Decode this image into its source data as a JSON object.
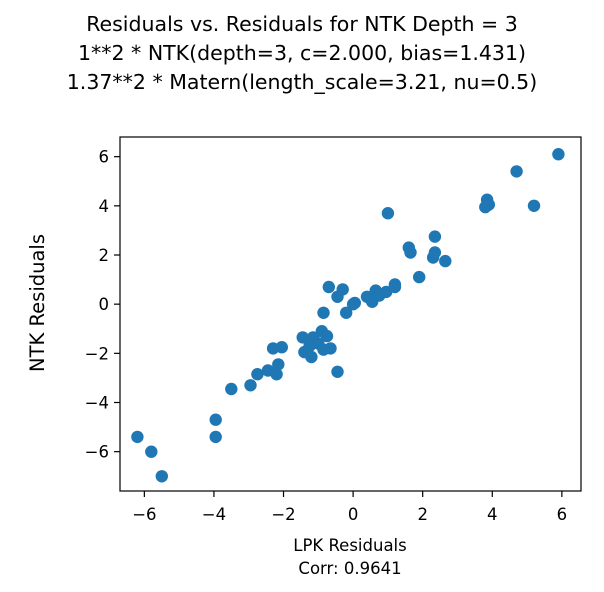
{
  "chart_data": {
    "type": "scatter",
    "title_lines": [
      "Residuals vs. Residuals for NTK Depth = 3",
      "1**2 * NTK(depth=3, c=2.000, bias=1.431)",
      "1.37**2 * Matern(length_scale=3.21, nu=0.5)"
    ],
    "xlabel": "LPK Residuals",
    "xlabel_sub": "Corr: 0.9641",
    "ylabel": "NTK Residuals",
    "xlim": [
      -6.7,
      6.55
    ],
    "ylim": [
      -7.6,
      6.8
    ],
    "xticks": [
      -6,
      -4,
      -2,
      0,
      2,
      4,
      6
    ],
    "yticks": [
      -6,
      -4,
      -2,
      0,
      2,
      4,
      6
    ],
    "xtick_labels": [
      "−6",
      "−4",
      "−2",
      "0",
      "2",
      "4",
      "6"
    ],
    "ytick_labels": [
      "−6",
      "−4",
      "−2",
      "0",
      "2",
      "4",
      "6"
    ],
    "grid": false,
    "marker_color": "#1f77b4",
    "points": [
      {
        "x": -6.2,
        "y": -5.4
      },
      {
        "x": -5.8,
        "y": -6.0
      },
      {
        "x": -5.5,
        "y": -7.0
      },
      {
        "x": -3.95,
        "y": -4.7
      },
      {
        "x": -3.95,
        "y": -5.4
      },
      {
        "x": -3.5,
        "y": -3.45
      },
      {
        "x": -2.95,
        "y": -3.3
      },
      {
        "x": -2.75,
        "y": -2.85
      },
      {
        "x": -2.45,
        "y": -2.7
      },
      {
        "x": -2.2,
        "y": -2.85
      },
      {
        "x": -2.15,
        "y": -2.45
      },
      {
        "x": -2.3,
        "y": -1.8
      },
      {
        "x": -2.05,
        "y": -1.75
      },
      {
        "x": -1.45,
        "y": -1.35
      },
      {
        "x": -1.4,
        "y": -1.95
      },
      {
        "x": -1.15,
        "y": -1.35
      },
      {
        "x": -1.25,
        "y": -1.7
      },
      {
        "x": -1.2,
        "y": -2.15
      },
      {
        "x": -1.0,
        "y": -1.6
      },
      {
        "x": -0.9,
        "y": -1.1
      },
      {
        "x": -0.85,
        "y": -0.35
      },
      {
        "x": -0.85,
        "y": -1.85
      },
      {
        "x": -0.75,
        "y": -1.3
      },
      {
        "x": -0.65,
        "y": -1.8
      },
      {
        "x": -0.7,
        "y": 0.7
      },
      {
        "x": -0.45,
        "y": 0.3
      },
      {
        "x": -0.3,
        "y": 0.6
      },
      {
        "x": -0.45,
        "y": -2.75
      },
      {
        "x": -0.2,
        "y": -0.35
      },
      {
        "x": 0.0,
        "y": 0.0
      },
      {
        "x": 0.05,
        "y": 0.05
      },
      {
        "x": 0.4,
        "y": 0.3
      },
      {
        "x": 0.55,
        "y": 0.1
      },
      {
        "x": 0.65,
        "y": 0.55
      },
      {
        "x": 0.75,
        "y": 0.35
      },
      {
        "x": 0.95,
        "y": 0.5
      },
      {
        "x": 1.0,
        "y": 3.7
      },
      {
        "x": 1.2,
        "y": 0.7
      },
      {
        "x": 1.2,
        "y": 0.8
      },
      {
        "x": 1.6,
        "y": 2.3
      },
      {
        "x": 1.65,
        "y": 2.1
      },
      {
        "x": 1.9,
        "y": 1.1
      },
      {
        "x": 2.3,
        "y": 1.9
      },
      {
        "x": 2.35,
        "y": 2.1
      },
      {
        "x": 2.35,
        "y": 2.75
      },
      {
        "x": 2.65,
        "y": 1.75
      },
      {
        "x": 3.8,
        "y": 3.95
      },
      {
        "x": 3.85,
        "y": 4.25
      },
      {
        "x": 3.9,
        "y": 4.05
      },
      {
        "x": 4.7,
        "y": 5.4
      },
      {
        "x": 5.2,
        "y": 4.0
      },
      {
        "x": 5.9,
        "y": 6.1
      }
    ]
  }
}
